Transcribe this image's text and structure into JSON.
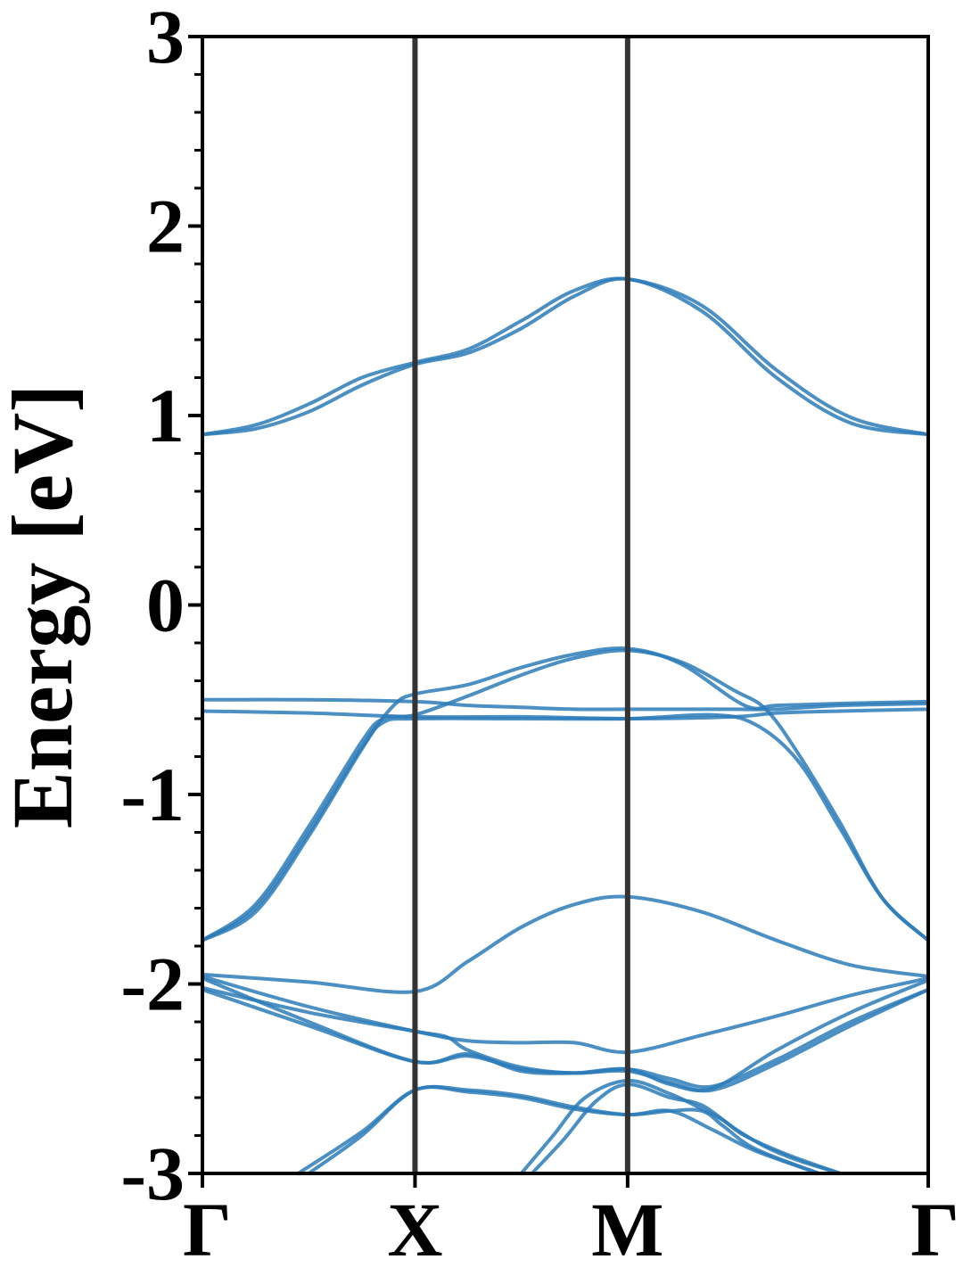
{
  "chart_data": {
    "type": "line",
    "title": "",
    "xlabel": "",
    "ylabel": "Energy [eV]",
    "ylim": [
      -3,
      3
    ],
    "yticks": [
      {
        "value": 3,
        "label": "3"
      },
      {
        "value": 2,
        "label": "2"
      },
      {
        "value": 1,
        "label": "1"
      },
      {
        "value": 0,
        "label": "0"
      },
      {
        "value": -1,
        "label": "-1"
      },
      {
        "value": -2,
        "label": "-2"
      },
      {
        "value": -3,
        "label": "-3"
      }
    ],
    "xlim": [
      0,
      3.414
    ],
    "kpoints": [
      {
        "label": "Γ",
        "x": 0
      },
      {
        "label": "X",
        "x": 1
      },
      {
        "label": "M",
        "x": 2
      },
      {
        "label": "Γ",
        "x": 3.414
      }
    ],
    "grid": false,
    "colors": {
      "band": "#2b7bb9",
      "kpoint_line": "#333333",
      "axis": "#000000"
    },
    "series": [
      {
        "x": [
          0,
          0.25,
          0.5,
          0.75,
          1,
          1.25,
          1.5,
          1.75,
          2,
          2.35,
          2.7,
          3.05,
          3.414
        ],
        "values": [
          0.9,
          0.93,
          1.02,
          1.16,
          1.27,
          1.33,
          1.46,
          1.63,
          1.72,
          1.55,
          1.2,
          0.96,
          0.9
        ]
      },
      {
        "x": [
          0,
          0.25,
          0.5,
          0.75,
          1,
          1.25,
          1.5,
          1.75,
          2,
          2.35,
          2.7,
          3.05,
          3.414
        ],
        "values": [
          0.9,
          0.95,
          1.06,
          1.2,
          1.28,
          1.35,
          1.5,
          1.66,
          1.72,
          1.58,
          1.24,
          0.99,
          0.9
        ]
      },
      {
        "x": [
          0,
          0.5,
          1,
          1.25,
          1.5,
          1.75,
          2,
          2.25,
          2.5,
          2.7,
          3.0,
          3.414
        ],
        "values": [
          -0.5,
          -0.5,
          -0.51,
          -0.53,
          -0.54,
          -0.55,
          -0.55,
          -0.55,
          -0.55,
          -0.55,
          -0.53,
          -0.52
        ]
      },
      {
        "x": [
          0,
          0.5,
          1,
          1.5,
          2,
          2.5,
          2.7,
          3.0,
          3.414
        ],
        "values": [
          -0.56,
          -0.57,
          -0.59,
          -0.59,
          -0.6,
          -0.59,
          -0.57,
          -0.56,
          -0.55
        ]
      },
      {
        "x": [
          0,
          0.25,
          0.5,
          0.75,
          0.9,
          1,
          1.25,
          1.5,
          1.75,
          2,
          2.25,
          2.55,
          2.7,
          3.0,
          3.414
        ],
        "values": [
          -1.77,
          -1.6,
          -1.2,
          -0.75,
          -0.53,
          -0.47,
          -0.42,
          -0.33,
          -0.26,
          -0.23,
          -0.31,
          -0.53,
          -0.53,
          -0.52,
          -0.51
        ]
      },
      {
        "x": [
          0,
          0.25,
          0.5,
          0.75,
          0.85,
          1,
          1.25,
          1.5,
          1.75,
          2,
          2.25,
          2.5,
          2.65,
          2.8,
          3.0,
          3.2,
          3.414
        ],
        "values": [
          -1.77,
          -1.58,
          -1.17,
          -0.72,
          -0.6,
          -0.58,
          -0.48,
          -0.37,
          -0.28,
          -0.24,
          -0.3,
          -0.45,
          -0.55,
          -0.78,
          -1.15,
          -1.55,
          -1.77
        ]
      },
      {
        "x": [
          0,
          0.25,
          0.5,
          0.75,
          0.85,
          1,
          1.5,
          2,
          2.4,
          2.6,
          2.8,
          3.0,
          3.2,
          3.414
        ],
        "values": [
          -1.77,
          -1.62,
          -1.22,
          -0.76,
          -0.62,
          -0.6,
          -0.6,
          -0.6,
          -0.58,
          -0.63,
          -0.82,
          -1.18,
          -1.55,
          -1.77
        ]
      },
      {
        "x": [
          0,
          0.5,
          1,
          1.25,
          1.5,
          1.75,
          2,
          2.35,
          2.7,
          3.05,
          3.414
        ],
        "values": [
          -1.95,
          -1.99,
          -2.04,
          -1.88,
          -1.7,
          -1.58,
          -1.54,
          -1.62,
          -1.77,
          -1.9,
          -1.96
        ]
      },
      {
        "x": [
          0,
          0.5,
          1,
          1.25,
          1.5,
          1.75,
          2,
          2.35,
          2.7,
          3.05,
          3.414
        ],
        "values": [
          -1.96,
          -2.12,
          -2.25,
          -2.3,
          -2.31,
          -2.31,
          -2.36,
          -2.27,
          -2.17,
          -2.06,
          -1.97
        ]
      },
      {
        "x": [
          0,
          0.5,
          1,
          1.25,
          1.5,
          1.75,
          2,
          2.2,
          2.4,
          2.7,
          3.05,
          3.414
        ],
        "values": [
          -1.97,
          -2.2,
          -2.41,
          -2.37,
          -2.46,
          -2.47,
          -2.45,
          -2.53,
          -2.55,
          -2.35,
          -2.15,
          -1.98
        ]
      },
      {
        "x": [
          0,
          0.5,
          1,
          1.15,
          1.25,
          1.5,
          1.75,
          2,
          2.2,
          2.4,
          2.7,
          3.05,
          3.414
        ],
        "values": [
          -2.02,
          -2.15,
          -2.25,
          -2.28,
          -2.35,
          -2.44,
          -2.47,
          -2.45,
          -2.5,
          -2.54,
          -2.4,
          -2.2,
          -2.03
        ]
      },
      {
        "x": [
          0,
          0.5,
          1,
          1.25,
          1.5,
          1.75,
          2,
          2.2,
          2.4,
          2.7,
          3.05,
          3.414
        ],
        "values": [
          -2.03,
          -2.22,
          -2.41,
          -2.38,
          -2.45,
          -2.47,
          -2.46,
          -2.52,
          -2.56,
          -2.42,
          -2.22,
          -2.03
        ]
      },
      {
        "x": [
          0.45,
          0.75,
          1,
          1.25,
          1.5,
          1.75,
          2,
          2.2,
          2.4,
          2.6,
          2.9
        ],
        "values": [
          -3.0,
          -2.78,
          -2.56,
          -2.56,
          -2.59,
          -2.65,
          -2.69,
          -2.67,
          -2.77,
          -2.88,
          -3.0
        ]
      },
      {
        "x": [
          0.5,
          0.75,
          1,
          1.25,
          1.5,
          1.75,
          2,
          2.2,
          2.35,
          2.45,
          2.6,
          2.9
        ],
        "values": [
          -3.0,
          -2.8,
          -2.56,
          -2.57,
          -2.6,
          -2.66,
          -2.69,
          -2.67,
          -2.67,
          -2.75,
          -2.87,
          -3.0
        ]
      },
      {
        "x": [
          1.5,
          1.65,
          1.8,
          2,
          2.2,
          2.35,
          2.45,
          2.55,
          2.75,
          3.0
        ],
        "values": [
          -3.0,
          -2.8,
          -2.6,
          -2.51,
          -2.58,
          -2.66,
          -2.72,
          -2.8,
          -2.9,
          -3.0
        ]
      },
      {
        "x": [
          1.55,
          1.7,
          1.85,
          2,
          2.2,
          2.35,
          2.5,
          2.65,
          2.8,
          3.0
        ],
        "values": [
          -3.0,
          -2.82,
          -2.62,
          -2.53,
          -2.6,
          -2.64,
          -2.76,
          -2.86,
          -2.93,
          -3.0
        ]
      }
    ]
  }
}
